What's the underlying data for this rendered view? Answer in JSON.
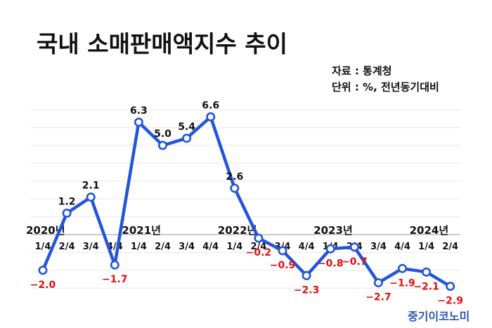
{
  "header": {
    "title": "국내 소매판매액지수 추이",
    "source_label": "자료 : 통계청",
    "unit_label": "단위 : %, 전년동기대비"
  },
  "branding": {
    "logo_text": "중기이코노미"
  },
  "colors": {
    "line": "#2255dd",
    "marker_fill": "#ffffff",
    "positive_label": "#111111",
    "negative_label": "#e01010",
    "axis": "#bbbbbb",
    "grid": "#e8e8e8"
  },
  "chart_data": {
    "type": "line",
    "title": "국내 소매판매액지수 추이",
    "unit": "%, 전년동기대비",
    "ylim": [
      -3.5,
      7.5
    ],
    "grid": true,
    "years": [
      {
        "label": "2020년",
        "start_index": 0
      },
      {
        "label": "2021년",
        "start_index": 4
      },
      {
        "label": "2022년",
        "start_index": 8
      },
      {
        "label": "2023년",
        "start_index": 12
      },
      {
        "label": "2024년",
        "start_index": 16
      }
    ],
    "categories": [
      "1/4",
      "2/4",
      "3/4",
      "4/4",
      "1/4",
      "2/4",
      "3/4",
      "4/4",
      "1/4",
      "2/4",
      "3/4",
      "4/4",
      "1/4",
      "2/4",
      "3/4",
      "4/4",
      "1/4",
      "2/4"
    ],
    "series": [
      {
        "values": [
          -2.0,
          1.2,
          2.1,
          -1.7,
          6.3,
          5.0,
          5.4,
          6.6,
          2.6,
          -0.2,
          -0.9,
          -2.3,
          -0.8,
          -0.7,
          -2.7,
          -1.9,
          -2.1,
          -2.9
        ],
        "labels": [
          "−2.0",
          "1.2",
          "2.1",
          "−1.7",
          "6.3",
          "5.0",
          "5.4",
          "6.6",
          "2.6",
          "−0.2",
          "−0.9",
          "−2.3",
          "−0.8",
          "−0.7",
          "−2.7",
          "−1.9",
          "−2.1",
          "−2.9"
        ]
      }
    ]
  }
}
